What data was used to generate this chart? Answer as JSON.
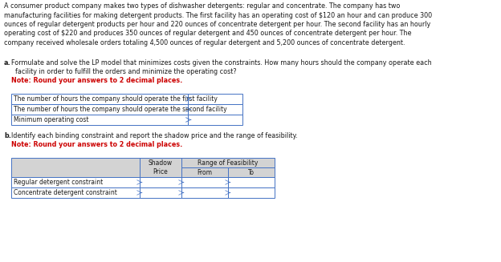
{
  "background_color": "#ffffff",
  "paragraph_text": "A consumer product company makes two types of dishwasher detergents: regular and concentrate. The company has two\nmanufacturing facilities for making detergent products. The first facility has an operating cost of $120 an hour and can produce 300\nounces of regular detergent products per hour and 220 ounces of concentrate detergent per hour. The second facility has an hourly\noperating cost of $220 and produces 350 ounces of regular detergent and 450 ounces of concentrate detergent per hour. The\ncompany received wholesale orders totaling 4,500 ounces of regular detergent and 5,200 ounces of concentrate detergent.",
  "part_a_label": "a.",
  "part_a_line1": "Formulate and solve the LP model that minimizes costs given the constraints. How many hours should the company operate each",
  "part_a_line2": "  facility in order to fulfill the orders and minimize the operating cost?",
  "note_a": "Note: Round your answers to 2 decimal places.",
  "table_a_rows": [
    "The number of hours the company should operate the first facility",
    "The number of hours the company should operate the second facility",
    "Minimum operating cost"
  ],
  "part_b_label": "b.",
  "part_b_text": "Identify each binding constraint and report the shadow price and the range of feasibility.",
  "note_b": "Note: Round your answers to 2 decimal places.",
  "table_b_header_shadow": "Shadow\nPrice",
  "table_b_header_from": "From",
  "table_b_header_to": "To",
  "table_b_range_header": "Range of Feasibility",
  "table_b_rows": [
    "Regular detergent constraint",
    "Concentrate detergent constraint"
  ],
  "font_size_para": 5.8,
  "font_size_body": 5.8,
  "font_size_note": 5.8,
  "font_size_table": 5.5,
  "text_color_normal": "#1a1a1a",
  "text_color_red": "#cc0000",
  "border_color": "#4472c4",
  "header_bg": "#d3d3d3",
  "cell_bg": "#ffffff"
}
